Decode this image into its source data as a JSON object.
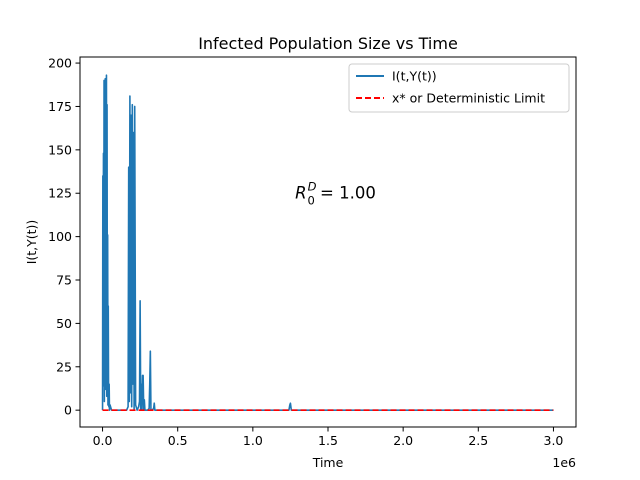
{
  "chart_data": {
    "type": "line",
    "title": "Infected Population Size vs Time",
    "xlabel": "Time",
    "ylabel": "I(t,Y(t))",
    "x_offset_label": "1e6",
    "xlim": [
      -0.15,
      3.15
    ],
    "ylim": [
      -9.7,
      203.5
    ],
    "x_ticks": [
      0.0,
      0.5,
      1.0,
      1.5,
      2.0,
      2.5,
      3.0
    ],
    "x_tick_labels": [
      "0.0",
      "0.5",
      "1.0",
      "1.5",
      "2.0",
      "2.5",
      "3.0"
    ],
    "y_ticks": [
      0,
      25,
      50,
      75,
      100,
      125,
      150,
      175,
      200
    ],
    "y_tick_labels": [
      "0",
      "25",
      "50",
      "75",
      "100",
      "125",
      "150",
      "175",
      "200"
    ],
    "annotation": {
      "base": "R",
      "subscript": "0",
      "superscript": "D",
      "equals_text": " = 1.00",
      "x": 1.55,
      "y": 122
    },
    "legend_position": "upper right",
    "legend": [
      {
        "label": "I(t,Y(t))",
        "color": "#1f77b4",
        "style": "solid"
      },
      {
        "label": "x* or Deterministic Limit",
        "color": "#ff0000",
        "style": "dashed"
      }
    ],
    "series": [
      {
        "name": "I(t,Y(t))",
        "color": "#1f77b4",
        "x": [
          0.0,
          0.002,
          0.004,
          0.006,
          0.008,
          0.01,
          0.012,
          0.014,
          0.016,
          0.018,
          0.02,
          0.022,
          0.024,
          0.026,
          0.028,
          0.03,
          0.032,
          0.034,
          0.036,
          0.038,
          0.04,
          0.042,
          0.044,
          0.046,
          0.05,
          0.06,
          0.1,
          0.16,
          0.17,
          0.174,
          0.178,
          0.182,
          0.186,
          0.19,
          0.194,
          0.198,
          0.202,
          0.206,
          0.21,
          0.214,
          0.22,
          0.23,
          0.24,
          0.246,
          0.25,
          0.254,
          0.258,
          0.262,
          0.266,
          0.27,
          0.274,
          0.278,
          0.282,
          0.29,
          0.3,
          0.31,
          0.314,
          0.318,
          0.322,
          0.33,
          0.34,
          0.344,
          0.348,
          0.352,
          0.4,
          0.6,
          1.0,
          1.24,
          1.246,
          1.25,
          1.256,
          1.262,
          1.3,
          2.0,
          3.0
        ],
        "y": [
          0,
          135,
          20,
          148,
          14,
          190,
          5,
          188,
          30,
          191,
          12,
          185,
          40,
          193,
          8,
          176,
          20,
          101,
          3,
          60,
          10,
          2,
          15,
          0,
          3,
          0,
          0,
          0,
          2,
          140,
          5,
          181,
          10,
          170,
          2,
          176,
          15,
          160,
          0,
          175,
          3,
          0,
          2,
          5,
          63,
          0,
          15,
          0,
          20,
          20,
          0,
          6,
          0,
          0,
          0,
          1,
          15,
          34,
          0,
          0,
          1,
          4,
          0,
          0,
          0,
          0,
          0,
          0,
          3,
          4,
          0,
          0,
          0,
          0,
          0
        ]
      },
      {
        "name": "x* or Deterministic Limit",
        "color": "#ff0000",
        "x": [
          0.0,
          3.0
        ],
        "y": [
          0,
          0
        ]
      }
    ]
  }
}
